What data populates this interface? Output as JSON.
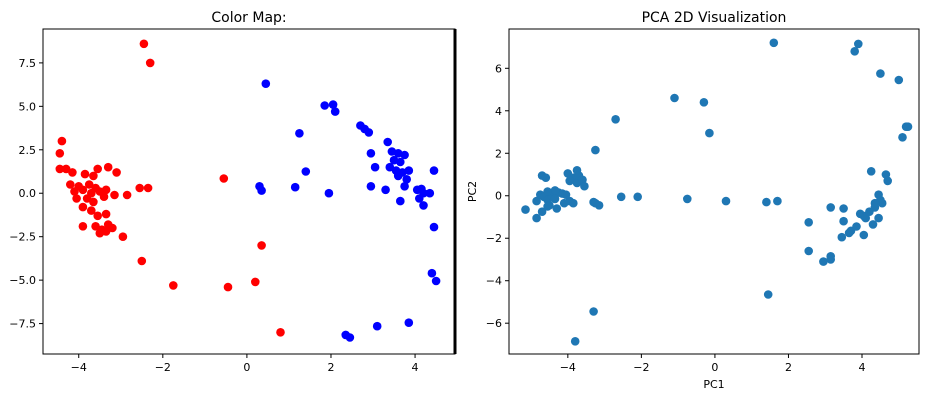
{
  "chart_data": [
    {
      "type": "scatter",
      "title": "Color Map:",
      "xlabel": "",
      "ylabel": "",
      "xlim": [
        -4.85,
        4.95
      ],
      "ylim": [
        -9.25,
        9.45
      ],
      "xticks": [
        -4,
        -2,
        0,
        2,
        4
      ],
      "xtick_labels": [
        "−4",
        "−2",
        "0",
        "2",
        "4"
      ],
      "yticks": [
        7.5,
        5.0,
        2.5,
        0.0,
        -2.5,
        -5.0,
        -7.5
      ],
      "ytick_labels": [
        "7.5",
        "5.0",
        "2.5",
        "0.0",
        "−2.5",
        "−5.0",
        "−7.5"
      ],
      "grid": false,
      "series": [
        {
          "color": "#ff0000",
          "points": [
            [
              -2.45,
              8.6
            ],
            [
              -2.3,
              7.5
            ],
            [
              -4.4,
              3.0
            ],
            [
              -4.45,
              2.3
            ],
            [
              -4.3,
              1.4
            ],
            [
              -4.45,
              1.4
            ],
            [
              -4.15,
              1.2
            ],
            [
              -3.85,
              1.1
            ],
            [
              -3.65,
              1.0
            ],
            [
              -3.3,
              1.5
            ],
            [
              -3.55,
              1.4
            ],
            [
              -3.1,
              1.2
            ],
            [
              -4.2,
              0.5
            ],
            [
              -4.0,
              0.4
            ],
            [
              -3.75,
              0.5
            ],
            [
              -3.6,
              0.3
            ],
            [
              -3.9,
              0.2
            ],
            [
              -4.1,
              0.1
            ],
            [
              -3.7,
              0.0
            ],
            [
              -3.5,
              0.1
            ],
            [
              -3.35,
              0.2
            ],
            [
              -3.8,
              -0.3
            ],
            [
              -4.05,
              -0.3
            ],
            [
              -3.65,
              -0.5
            ],
            [
              -3.4,
              -0.2
            ],
            [
              -3.15,
              -0.1
            ],
            [
              -2.85,
              -0.1
            ],
            [
              -2.55,
              0.3
            ],
            [
              -2.35,
              0.3
            ],
            [
              -3.9,
              -0.8
            ],
            [
              -3.7,
              -1.0
            ],
            [
              -3.55,
              -1.3
            ],
            [
              -3.35,
              -1.2
            ],
            [
              -3.9,
              -1.9
            ],
            [
              -3.6,
              -1.9
            ],
            [
              -3.45,
              -2.1
            ],
            [
              -3.35,
              -2.2
            ],
            [
              -3.2,
              -2.0
            ],
            [
              -3.3,
              -1.8
            ],
            [
              -3.5,
              -2.3
            ],
            [
              -2.95,
              -2.5
            ],
            [
              -2.5,
              -3.9
            ],
            [
              -1.75,
              -5.3
            ],
            [
              -0.55,
              0.85
            ],
            [
              -0.45,
              -5.4
            ],
            [
              0.35,
              -3.0
            ],
            [
              0.2,
              -5.1
            ],
            [
              0.8,
              -8.0
            ]
          ]
        },
        {
          "color": "#0000ff",
          "points": [
            [
              0.45,
              6.3
            ],
            [
              1.85,
              5.05
            ],
            [
              2.05,
              5.1
            ],
            [
              2.1,
              4.7
            ],
            [
              1.25,
              3.45
            ],
            [
              1.4,
              1.25
            ],
            [
              1.15,
              0.35
            ],
            [
              0.3,
              0.4
            ],
            [
              0.35,
              0.15
            ],
            [
              1.95,
              0.0
            ],
            [
              2.7,
              3.9
            ],
            [
              2.8,
              3.7
            ],
            [
              2.9,
              3.5
            ],
            [
              2.95,
              2.3
            ],
            [
              3.35,
              2.95
            ],
            [
              3.45,
              2.4
            ],
            [
              3.6,
              2.3
            ],
            [
              3.75,
              2.2
            ],
            [
              3.5,
              1.9
            ],
            [
              3.65,
              1.8
            ],
            [
              3.4,
              1.5
            ],
            [
              3.55,
              1.3
            ],
            [
              3.7,
              1.2
            ],
            [
              3.85,
              1.3
            ],
            [
              3.6,
              1.0
            ],
            [
              3.8,
              0.8
            ],
            [
              4.45,
              1.3
            ],
            [
              3.05,
              1.5
            ],
            [
              2.95,
              0.4
            ],
            [
              3.3,
              0.2
            ],
            [
              3.75,
              0.4
            ],
            [
              4.05,
              0.2
            ],
            [
              4.15,
              0.25
            ],
            [
              4.2,
              0.0
            ],
            [
              4.35,
              0.0
            ],
            [
              3.65,
              -0.45
            ],
            [
              4.1,
              -0.3
            ],
            [
              4.2,
              -0.7
            ],
            [
              4.45,
              -1.95
            ],
            [
              4.4,
              -4.6
            ],
            [
              4.5,
              -5.05
            ],
            [
              3.1,
              -7.65
            ],
            [
              3.85,
              -7.45
            ],
            [
              2.35,
              -8.15
            ],
            [
              2.45,
              -8.3
            ]
          ]
        }
      ]
    },
    {
      "type": "scatter",
      "title": "PCA 2D Visualization",
      "xlabel": "PC1",
      "ylabel": "PC2",
      "xlim": [
        -5.6,
        5.55
      ],
      "ylim": [
        -7.45,
        7.85
      ],
      "xticks": [
        -4,
        -2,
        0,
        2,
        4
      ],
      "xtick_labels": [
        "−4",
        "−2",
        "0",
        "2",
        "4"
      ],
      "yticks": [
        6,
        4,
        2,
        0,
        -2,
        -4,
        -6
      ],
      "ytick_labels": [
        "6",
        "4",
        "2",
        "0",
        "−2",
        "−4",
        "−6"
      ],
      "grid": false,
      "series": [
        {
          "color": "#1f77b4",
          "points": [
            [
              -5.15,
              -0.65
            ],
            [
              -4.85,
              -1.05
            ],
            [
              -4.7,
              -0.75
            ],
            [
              -4.85,
              -0.25
            ],
            [
              -4.75,
              0.05
            ],
            [
              -4.65,
              -0.05
            ],
            [
              -4.55,
              -0.2
            ],
            [
              -4.45,
              0.0
            ],
            [
              -4.35,
              0.1
            ],
            [
              -4.25,
              0.15
            ],
            [
              -4.15,
              0.1
            ],
            [
              -4.5,
              -0.45
            ],
            [
              -4.3,
              -0.6
            ],
            [
              -4.1,
              -0.35
            ],
            [
              -3.95,
              -0.25
            ],
            [
              -3.85,
              -0.35
            ],
            [
              -4.05,
              0.05
            ],
            [
              -4.0,
              1.05
            ],
            [
              -3.85,
              0.85
            ],
            [
              -3.95,
              0.7
            ],
            [
              -3.75,
              0.6
            ],
            [
              -3.7,
              0.95
            ],
            [
              -3.6,
              0.75
            ],
            [
              -3.75,
              1.2
            ],
            [
              -4.55,
              -0.5
            ],
            [
              -4.35,
              0.25
            ],
            [
              -4.55,
              0.2
            ],
            [
              -4.35,
              -0.15
            ],
            [
              -4.7,
              0.95
            ],
            [
              -4.6,
              0.85
            ],
            [
              -3.55,
              0.45
            ],
            [
              -3.3,
              -0.3
            ],
            [
              -3.15,
              -0.45
            ],
            [
              -3.25,
              -0.35
            ],
            [
              -3.25,
              2.15
            ],
            [
              -3.8,
              -6.85
            ],
            [
              -3.3,
              -5.45
            ],
            [
              -2.7,
              3.6
            ],
            [
              -2.55,
              -0.05
            ],
            [
              -2.1,
              -0.05
            ],
            [
              -1.1,
              4.6
            ],
            [
              -0.75,
              -0.15
            ],
            [
              -0.3,
              4.4
            ],
            [
              -0.15,
              2.95
            ],
            [
              0.3,
              -0.25
            ],
            [
              1.6,
              7.2
            ],
            [
              1.4,
              -0.3
            ],
            [
              1.7,
              -0.25
            ],
            [
              1.45,
              -4.65
            ],
            [
              2.55,
              -1.25
            ],
            [
              2.55,
              -2.6
            ],
            [
              2.95,
              -3.1
            ],
            [
              3.15,
              -2.85
            ],
            [
              3.15,
              -3.0
            ],
            [
              3.15,
              -0.55
            ],
            [
              3.5,
              -1.2
            ],
            [
              3.45,
              -1.95
            ],
            [
              3.65,
              -1.75
            ],
            [
              3.5,
              -0.6
            ],
            [
              3.7,
              -1.65
            ],
            [
              3.85,
              -1.45
            ],
            [
              3.95,
              -0.85
            ],
            [
              4.05,
              -0.95
            ],
            [
              4.1,
              -1.05
            ],
            [
              4.2,
              -0.75
            ],
            [
              4.35,
              -0.55
            ],
            [
              4.05,
              -1.85
            ],
            [
              4.3,
              -1.35
            ],
            [
              4.45,
              -1.05
            ],
            [
              4.55,
              -0.35
            ],
            [
              4.5,
              -0.2
            ],
            [
              4.35,
              -0.35
            ],
            [
              4.45,
              0.05
            ],
            [
              4.7,
              0.7
            ],
            [
              4.65,
              1.0
            ],
            [
              4.25,
              1.15
            ],
            [
              3.8,
              6.8
            ],
            [
              3.9,
              7.15
            ],
            [
              4.5,
              5.75
            ],
            [
              5.0,
              5.45
            ],
            [
              5.1,
              2.75
            ],
            [
              5.2,
              3.25
            ],
            [
              5.25,
              3.25
            ]
          ]
        }
      ]
    }
  ]
}
